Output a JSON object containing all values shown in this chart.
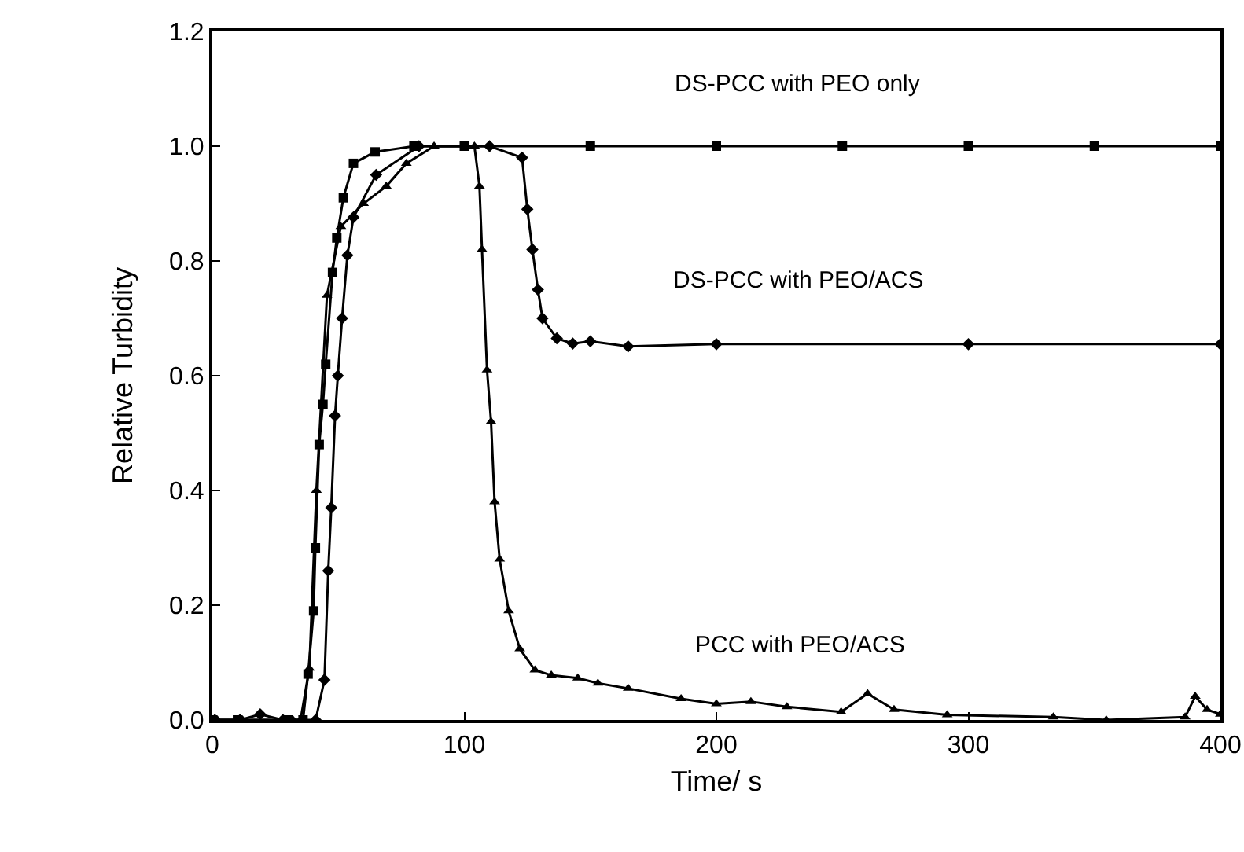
{
  "chart_data": {
    "type": "line",
    "xlabel": "Time/ s",
    "ylabel": "Relative Turbidity",
    "xlim": [
      0,
      400
    ],
    "ylim": [
      0,
      1.2
    ],
    "xticks": [
      0,
      100,
      200,
      300,
      400
    ],
    "yticks": [
      {
        "value": 0,
        "label": "0.0"
      },
      {
        "value": 0.2,
        "label": "0.2"
      },
      {
        "value": 0.4,
        "label": "0.4"
      },
      {
        "value": 0.6,
        "label": "0.6"
      },
      {
        "value": 0.8,
        "label": "0.8"
      },
      {
        "value": 1,
        "label": "1.0"
      },
      {
        "value": 1.2,
        "label": "1.2"
      }
    ],
    "grid": false,
    "line_style": "solid",
    "series": [
      {
        "name": "DS-PCC with PEO only",
        "color": "#000000",
        "marker": "square",
        "x": [
          0,
          10,
          30,
          36,
          38,
          40.2,
          40.9,
          42.4,
          43.9,
          45,
          47.7,
          49.4,
          52,
          56,
          64.6,
          80,
          100,
          150,
          200,
          250,
          300,
          350,
          400
        ],
        "values": [
          0,
          0,
          0,
          0,
          0.08,
          0.19,
          0.3,
          0.48,
          0.55,
          0.62,
          0.78,
          0.84,
          0.91,
          0.97,
          0.99,
          1,
          1,
          1,
          1,
          1,
          1,
          1,
          1
        ]
      },
      {
        "name": "PCC with PEO/ACS",
        "color": "#000000",
        "marker": "triangle",
        "x": [
          2,
          12,
          32,
          35,
          38.5,
          41.3,
          45.5,
          51,
          60,
          69,
          77,
          88,
          104,
          106,
          107,
          109,
          110.6,
          112,
          114,
          117.6,
          122,
          128,
          134.5,
          145,
          153,
          165,
          186,
          200,
          213.7,
          228,
          249.5,
          260,
          270.5,
          291.6,
          333.7,
          354.7,
          386,
          390,
          394.7,
          400
        ],
        "values": [
          0,
          0,
          0,
          0,
          0.09,
          0.4,
          0.74,
          0.86,
          0.9,
          0.93,
          0.97,
          1,
          1,
          0.93,
          0.82,
          0.61,
          0.52,
          0.38,
          0.28,
          0.19,
          0.124,
          0.087,
          0.078,
          0.073,
          0.064,
          0.055,
          0.037,
          0.028,
          0.032,
          0.023,
          0.014,
          0.046,
          0.018,
          0.009,
          0.005,
          0,
          0.005,
          0.041,
          0.018,
          0.01
        ]
      },
      {
        "name": "DS-PCC with PEO/ACS",
        "color": "#000000",
        "marker": "diamond",
        "x": [
          1,
          11,
          19,
          28,
          41,
          44.5,
          46,
          47.2,
          48.7,
          49.8,
          51.5,
          53.6,
          56,
          65,
          82,
          110,
          122.9,
          125,
          127,
          129.2,
          131,
          136.7,
          143,
          150,
          165,
          200,
          300,
          400
        ],
        "values": [
          0,
          0,
          0.01,
          0,
          0,
          0.07,
          0.26,
          0.37,
          0.53,
          0.6,
          0.7,
          0.81,
          0.876,
          0.95,
          1,
          1,
          0.98,
          0.89,
          0.82,
          0.75,
          0.7,
          0.665,
          0.656,
          0.66,
          0.651,
          0.655,
          0.655,
          0.655
        ]
      }
    ]
  }
}
